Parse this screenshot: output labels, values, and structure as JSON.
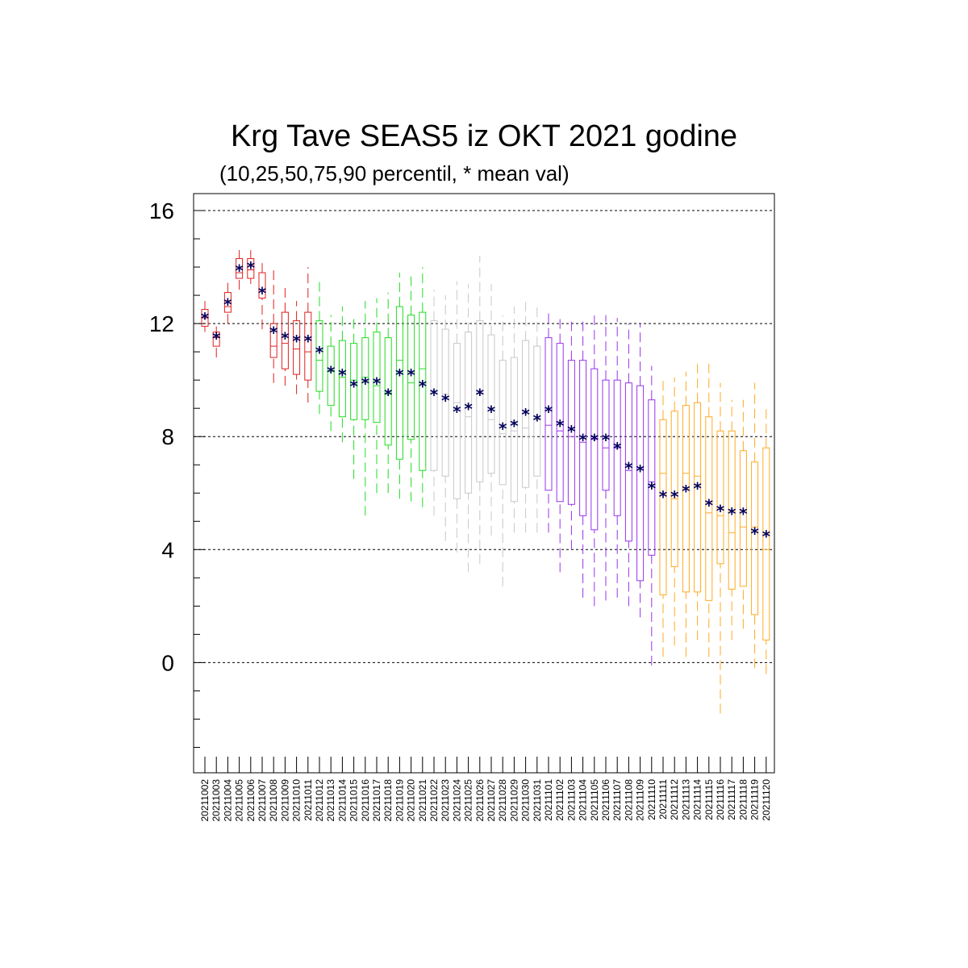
{
  "title": "Krg Tave SEAS5 iz OKT 2021 godine",
  "subtitle": "(10,25,50,75,90 percentil, * mean val)",
  "colors": {
    "mean_marker": "#00005a",
    "grid": "#000000",
    "groups": [
      "#e02020",
      "#22dd22",
      "#c8c8c8",
      "#9933ee",
      "#ffaa22"
    ]
  },
  "chart_data": {
    "type": "box",
    "title": "Krg Tave SEAS5 iz OKT 2021 godine",
    "subtitle": "(10,25,50,75,90 percentil, * mean val)",
    "xlabel": "",
    "ylabel": "",
    "ylim": [
      -3.9,
      16.6
    ],
    "yticks": [
      0,
      4,
      8,
      12,
      16
    ],
    "grid": "dashed horizontal at major ticks",
    "categories": [
      "20211002",
      "20211003",
      "20211004",
      "20211005",
      "20211006",
      "20211007",
      "20211008",
      "20211009",
      "20211010",
      "20211011",
      "20211012",
      "20211013",
      "20211014",
      "20211015",
      "20211016",
      "20211017",
      "20211018",
      "20211019",
      "20211020",
      "20211021",
      "20211022",
      "20211023",
      "20211024",
      "20211025",
      "20211026",
      "20211027",
      "20211028",
      "20211029",
      "20211030",
      "20211031",
      "20211101",
      "20211102",
      "20211103",
      "20211104",
      "20211105",
      "20211106",
      "20211107",
      "20211108",
      "20211109",
      "20211110",
      "20211111",
      "20211112",
      "20211113",
      "20211114",
      "20211115",
      "20211116",
      "20211117",
      "20211118",
      "20211119",
      "20211120"
    ],
    "color_group": [
      0,
      0,
      0,
      0,
      0,
      0,
      0,
      0,
      0,
      0,
      1,
      1,
      1,
      1,
      1,
      1,
      1,
      1,
      1,
      1,
      2,
      2,
      2,
      2,
      2,
      2,
      2,
      2,
      2,
      2,
      3,
      3,
      3,
      3,
      3,
      3,
      3,
      3,
      3,
      3,
      4,
      4,
      4,
      4,
      4,
      4,
      4,
      4,
      4,
      4
    ],
    "p10": [
      11.7,
      10.8,
      12.0,
      13.2,
      13.4,
      11.8,
      9.9,
      9.8,
      9.5,
      9.2,
      8.8,
      8.2,
      7.8,
      6.5,
      5.2,
      6.0,
      6.0,
      5.8,
      5.7,
      5.5,
      5.2,
      4.3,
      3.9,
      3.2,
      3.5,
      4.5,
      2.7,
      4.6,
      4.6,
      4.6,
      4.6,
      3.2,
      4.0,
      2.3,
      2.0,
      2.2,
      2.3,
      2.0,
      1.6,
      -0.1,
      0.2,
      0.6,
      0.2,
      0.8,
      0.2,
      -1.8,
      0.8,
      1.2,
      -0.2,
      -0.4
    ],
    "p25": [
      11.9,
      11.2,
      12.4,
      13.6,
      13.6,
      12.9,
      10.8,
      10.4,
      10.2,
      10.0,
      9.6,
      9.1,
      8.7,
      8.6,
      8.6,
      8.5,
      7.7,
      7.2,
      7.9,
      6.8,
      6.8,
      6.6,
      5.8,
      6.0,
      6.4,
      6.7,
      6.3,
      5.7,
      6.2,
      6.6,
      6.1,
      5.7,
      5.6,
      5.2,
      4.7,
      6.1,
      5.2,
      4.3,
      2.9,
      3.8,
      2.4,
      3.4,
      2.5,
      2.5,
      2.2,
      3.5,
      2.6,
      2.7,
      1.7,
      0.8
    ],
    "p50": [
      12.2,
      11.5,
      12.6,
      13.8,
      13.9,
      13.2,
      11.2,
      11.3,
      11.1,
      11.0,
      10.7,
      10.3,
      10.1,
      10.0,
      10.1,
      9.8,
      9.5,
      10.7,
      9.9,
      10.4,
      9.6,
      9.5,
      9.2,
      8.7,
      9.5,
      8.6,
      8.1,
      8.2,
      8.3,
      8.6,
      8.4,
      8.2,
      8.0,
      7.8,
      7.9,
      7.6,
      7.6,
      6.8,
      6.9,
      6.4,
      6.7,
      5.8,
      6.7,
      6.6,
      5.3,
      5.2,
      4.6,
      4.8,
      4.8,
      4.0
    ],
    "p75": [
      12.5,
      11.7,
      13.1,
      14.3,
      14.3,
      13.8,
      12.0,
      12.4,
      12.1,
      12.4,
      12.1,
      11.2,
      11.4,
      11.3,
      11.5,
      11.7,
      11.5,
      12.6,
      12.3,
      12.4,
      12.1,
      11.8,
      11.3,
      11.7,
      12.1,
      11.6,
      10.7,
      10.8,
      11.4,
      11.2,
      11.5,
      11.3,
      10.7,
      10.7,
      10.4,
      10.0,
      10.0,
      9.9,
      9.8,
      9.3,
      8.6,
      8.9,
      9.1,
      9.2,
      8.7,
      8.2,
      8.2,
      7.5,
      7.1,
      7.6
    ],
    "p90": [
      12.8,
      11.9,
      13.5,
      14.6,
      14.6,
      14.3,
      14.0,
      13.3,
      12.8,
      14.0,
      13.6,
      12.3,
      12.6,
      12.3,
      12.8,
      12.9,
      13.1,
      13.8,
      13.8,
      14.0,
      13.2,
      13.0,
      13.5,
      13.4,
      14.4,
      13.4,
      12.3,
      12.6,
      12.9,
      12.7,
      12.5,
      12.2,
      12.2,
      12.2,
      12.4,
      12.3,
      12.2,
      12.0,
      12.0,
      10.5,
      10.1,
      10.1,
      10.3,
      10.7,
      10.7,
      9.9,
      9.3,
      9.3,
      9.9,
      9.1
    ],
    "mean": [
      12.2,
      11.5,
      12.7,
      13.9,
      14.0,
      13.1,
      11.7,
      11.5,
      11.4,
      11.4,
      11.0,
      10.3,
      10.2,
      9.8,
      9.9,
      9.9,
      9.5,
      10.2,
      10.2,
      9.8,
      9.5,
      9.3,
      8.9,
      9.0,
      9.5,
      8.9,
      8.3,
      8.4,
      8.8,
      8.6,
      8.9,
      8.4,
      8.2,
      7.9,
      7.9,
      7.9,
      7.6,
      6.9,
      6.8,
      6.2,
      5.9,
      5.9,
      6.1,
      6.2,
      5.6,
      5.4,
      5.3,
      5.3,
      4.6,
      4.5
    ]
  }
}
